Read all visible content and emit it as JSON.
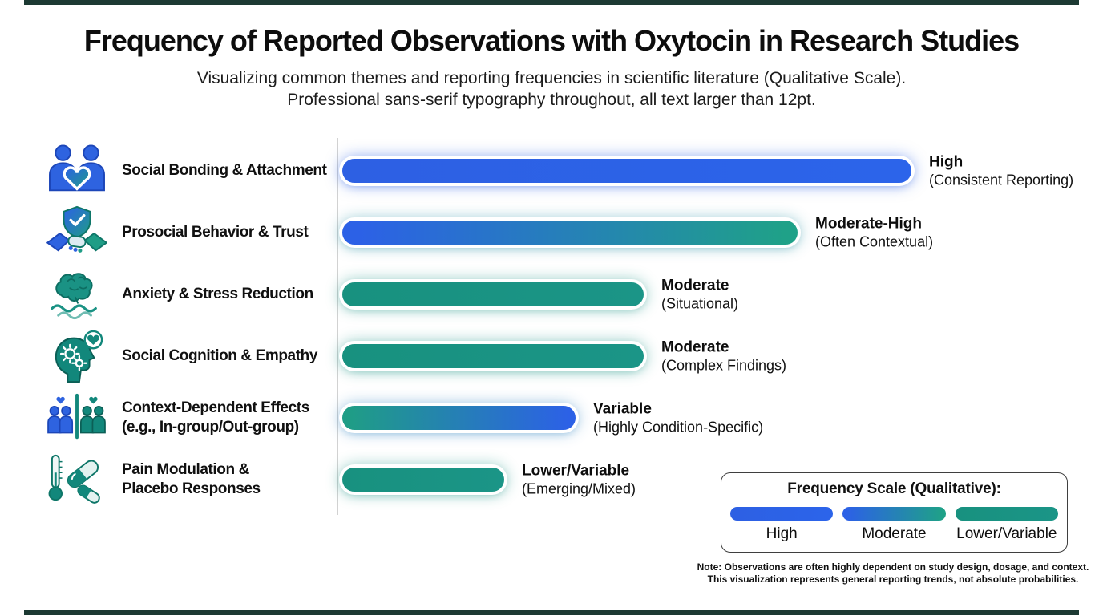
{
  "colors": {
    "blue": "#2c61e6",
    "teal": "#1a9284",
    "teal_bright": "#1fa188",
    "axis_line": "#d2d2d2",
    "edge_bar": "#1d3a33"
  },
  "chart_data": {
    "type": "bar",
    "orientation": "horizontal",
    "scale_type": "qualitative",
    "title": "Frequency of Reported Observations with Oxytocin in Research Studies",
    "subtitle_line1": "Visualizing common themes and reporting frequencies in scientific literature (Qualitative Scale).",
    "subtitle_line2": "Professional sans-serif typography throughout, all text larger than 12pt.",
    "categories": [
      "Social Bonding & Attachment",
      "Prosocial Behavior & Trust",
      "Anxiety & Stress Reduction",
      "Social Cognition & Empathy",
      "Context-Dependent Effects (e.g., In-group/Out-group)",
      "Pain Modulation & Placebo Responses"
    ],
    "rows": [
      {
        "label_line1": "Social Bonding & Attachment",
        "label_line2": "",
        "icon": "people-heart-icon",
        "value_label": "High",
        "value_detail": "(Consistent Reporting)",
        "color": "blue",
        "relative_length": 1.0
      },
      {
        "label_line1": "Prosocial Behavior & Trust",
        "label_line2": "",
        "icon": "shield-handshake-icon",
        "value_label": "Moderate-High",
        "value_detail": "(Often Contextual)",
        "color": "blue-teal",
        "relative_length": 0.8
      },
      {
        "label_line1": "Anxiety & Stress Reduction",
        "label_line2": "",
        "icon": "brain-waves-icon",
        "value_label": "Moderate",
        "value_detail": "(Situational)",
        "color": "teal",
        "relative_length": 0.53
      },
      {
        "label_line1": "Social Cognition & Empathy",
        "label_line2": "",
        "icon": "head-gears-icon",
        "value_label": "Moderate",
        "value_detail": "(Complex Findings)",
        "color": "teal",
        "relative_length": 0.53
      },
      {
        "label_line1": "Context-Dependent Effects",
        "label_line2": "(e.g., In-group/Out-group)",
        "icon": "in-group-out-group-icon",
        "value_label": "Variable",
        "value_detail": "(Highly Condition-Specific)",
        "color": "teal-blue",
        "relative_length": 0.41
      },
      {
        "label_line1": "Pain Modulation &",
        "label_line2": "Placebo Responses",
        "icon": "thermometer-pill-icon",
        "value_label": "Lower/Variable",
        "value_detail": "(Emerging/Mixed)",
        "color": "teal",
        "relative_length": 0.285
      }
    ],
    "legend": {
      "title": "Frequency Scale (Qualitative):",
      "position": "bottom-right",
      "items": [
        {
          "label": "High",
          "swatch": "blue"
        },
        {
          "label": "Moderate",
          "swatch": "blue-teal"
        },
        {
          "label": "Lower/Variable",
          "swatch": "teal"
        }
      ]
    },
    "note_line1": "Note: Observations are often highly dependent on study design, dosage, and context.",
    "note_line2": "This visualization represents general reporting trends, not absolute probabilities."
  }
}
